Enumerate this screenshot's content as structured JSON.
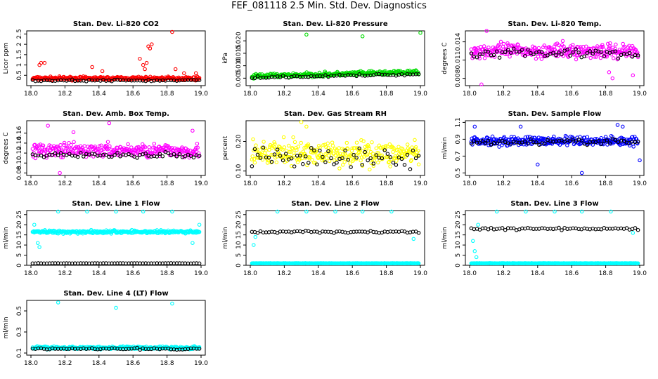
{
  "title": "FEF_081118  2.5 Min. Std. Dev. Diagnostics",
  "chart_data": [
    {
      "type": "scatter",
      "title": "Stan. Dev. Li-820 CO2",
      "ylabel": "Licor ppm",
      "color": "#ff0000",
      "xticks": [
        "18.0",
        "18.2",
        "18.4",
        "18.6",
        "18.8",
        "19.0"
      ],
      "xlim": [
        18.0,
        19.0
      ],
      "yticks": [
        0.5,
        1.0,
        1.5,
        2.0,
        2.5
      ],
      "ytick_labels": [
        "0.5",
        "1",
        "1.5",
        "2",
        "2.5"
      ],
      "ylim": [
        0.0,
        2.65
      ],
      "series": [
        {
          "name": "red",
          "base": 0.35,
          "spread": 0.12,
          "outliers": [
            [
              18.05,
              1.0
            ],
            [
              18.06,
              1.1
            ],
            [
              18.08,
              1.1
            ],
            [
              18.36,
              0.9
            ],
            [
              18.42,
              0.7
            ],
            [
              18.64,
              1.3
            ],
            [
              18.66,
              1.0
            ],
            [
              18.67,
              0.8
            ],
            [
              18.68,
              1.1
            ],
            [
              18.69,
              1.9
            ],
            [
              18.7,
              1.8
            ],
            [
              18.71,
              2.0
            ],
            [
              18.83,
              2.6
            ],
            [
              18.85,
              0.8
            ],
            [
              18.9,
              0.6
            ],
            [
              18.97,
              0.6
            ]
          ]
        },
        {
          "name": "black",
          "base": 0.25,
          "spread": 0.06,
          "outliers": []
        }
      ]
    },
    {
      "type": "scatter",
      "title": "Stan. Dev. Li-820 Pressure",
      "ylabel": "kPa",
      "color": "#00dd00",
      "xticks": [
        "18.0",
        "18.2",
        "18.4",
        "18.6",
        "18.8",
        "19.0"
      ],
      "xlim": [
        18.0,
        19.0
      ],
      "yticks": [
        0.005,
        0.01,
        0.015,
        0.02
      ],
      "ytick_labels": [
        "0.005",
        "0.010",
        "0.015",
        "0.020"
      ],
      "ylim": [
        0.002,
        0.024
      ],
      "series": [
        {
          "name": "green",
          "base": 0.0058,
          "slope": 0.0016,
          "spread": 0.0013,
          "outliers": [
            [
              18.33,
              0.0225
            ],
            [
              18.66,
              0.0218
            ],
            [
              19.0,
              0.0232
            ]
          ]
        },
        {
          "name": "black",
          "base": 0.0053,
          "slope": 0.0013,
          "spread": 0.0006,
          "outliers": []
        }
      ]
    },
    {
      "type": "scatter",
      "title": "Stan. Dev. Li-820 Temp.",
      "ylabel": "degrees C",
      "color": "#ff00ff",
      "xticks": [
        "18.0",
        "18.2",
        "18.4",
        "18.6",
        "18.8",
        "19.0"
      ],
      "xlim": [
        18.0,
        19.0
      ],
      "yticks": [
        0.008,
        0.011,
        0.014
      ],
      "ytick_labels": [
        "0.008",
        "0.011",
        "0.014"
      ],
      "ylim": [
        0.0068,
        0.0158
      ],
      "series": [
        {
          "name": "magenta",
          "base": 0.0125,
          "spread": 0.0018,
          "outliers": [
            [
              18.1,
              0.0158
            ],
            [
              18.07,
              0.007
            ],
            [
              18.84,
              0.008
            ],
            [
              18.82,
              0.009
            ],
            [
              18.96,
              0.0085
            ]
          ]
        },
        {
          "name": "black",
          "base": 0.0122,
          "spread": 0.0012,
          "outliers": []
        }
      ]
    },
    {
      "type": "scatter",
      "title": "Stan. Dev. Amb. Box Temp.",
      "ylabel": "degrees C",
      "color": "#ff00ff",
      "xticks": [
        "18.0",
        "18.2",
        "18.4",
        "18.6",
        "18.8",
        "19.0"
      ],
      "xlim": [
        18.0,
        19.0
      ],
      "yticks": [
        0.08,
        0.1,
        0.12,
        0.14,
        0.16
      ],
      "ytick_labels": [
        "0.08",
        "0.10",
        "0.12",
        "0.14",
        "0.16"
      ],
      "ylim": [
        0.075,
        0.185
      ],
      "series": [
        {
          "name": "magenta",
          "base": 0.125,
          "spread": 0.02,
          "outliers": [
            [
              18.1,
              0.175
            ],
            [
              18.46,
              0.18
            ],
            [
              18.25,
              0.162
            ],
            [
              18.95,
              0.165
            ],
            [
              18.17,
              0.08
            ]
          ]
        },
        {
          "name": "black",
          "base": 0.115,
          "spread": 0.01,
          "outliers": []
        }
      ]
    },
    {
      "type": "scatter",
      "title": "Stan. Dev. Gas Stream RH",
      "ylabel": "percent",
      "color": "#ffff00",
      "xticks": [
        "18.0",
        "18.2",
        "18.4",
        "18.6",
        "18.8",
        "19.0"
      ],
      "xlim": [
        18.0,
        19.0
      ],
      "yticks": [
        0.1,
        0.2
      ],
      "ytick_labels": [
        "0.10",
        "0.20"
      ],
      "ylim": [
        0.085,
        0.27
      ],
      "series": [
        {
          "name": "yellow",
          "base": 0.16,
          "spread": 0.06,
          "outliers": [
            [
              18.3,
              0.265
            ],
            [
              18.33,
              0.25
            ]
          ]
        },
        {
          "name": "black",
          "base": 0.14,
          "spread": 0.05,
          "outliers": []
        }
      ]
    },
    {
      "type": "scatter",
      "title": "Stan. Dev. Sample Flow",
      "ylabel": "ml/min",
      "color": "#0000ff",
      "xticks": [
        "18.0",
        "18.2",
        "18.4",
        "18.6",
        "18.8",
        "19.0"
      ],
      "xlim": [
        18.0,
        19.0
      ],
      "yticks": [
        0.5,
        0.7,
        0.9,
        1.1
      ],
      "ytick_labels": [
        "0.5",
        "0.7",
        "0.9",
        "1.1"
      ],
      "ylim": [
        0.47,
        1.12
      ],
      "series": [
        {
          "name": "blue",
          "base": 0.88,
          "spread": 0.08,
          "outliers": [
            [
              18.4,
              0.6
            ],
            [
              18.66,
              0.5
            ],
            [
              18.87,
              1.07
            ],
            [
              18.9,
              1.05
            ],
            [
              18.3,
              1.05
            ],
            [
              19.0,
              0.65
            ],
            [
              18.03,
              1.05
            ]
          ]
        },
        {
          "name": "black",
          "base": 0.87,
          "spread": 0.05,
          "outliers": []
        }
      ]
    },
    {
      "type": "scatter",
      "title": "Stan. Dev. Line 1 Flow",
      "ylabel": "ml/min",
      "color": "#00ffff",
      "xticks": [
        "18.0",
        "18.2",
        "18.4",
        "18.6",
        "18.8",
        "19.0"
      ],
      "xlim": [
        18.0,
        19.0
      ],
      "yticks": [
        0,
        5,
        10,
        15,
        20,
        25
      ],
      "ytick_labels": [
        "0",
        "5",
        "10",
        "15",
        "20",
        "25"
      ],
      "ylim": [
        0,
        27
      ],
      "series": [
        {
          "name": "cyan",
          "base": 16.5,
          "spread": 1.2,
          "outliers": [
            [
              18.16,
              26.5
            ],
            [
              18.33,
              26.5
            ],
            [
              18.5,
              26.5
            ],
            [
              18.66,
              26.5
            ],
            [
              18.83,
              26.5
            ],
            [
              18.02,
              20
            ],
            [
              18.04,
              11
            ],
            [
              18.05,
              9
            ],
            [
              18.95,
              11
            ],
            [
              18.99,
              20
            ]
          ]
        },
        {
          "name": "black",
          "base": 1.0,
          "spread": 0.1,
          "outliers": []
        }
      ]
    },
    {
      "type": "scatter",
      "title": "Stan. Dev. Line 2 Flow",
      "ylabel": "ml/min",
      "color": "#00ffff",
      "xticks": [
        "18.0",
        "18.2",
        "18.4",
        "18.6",
        "18.8",
        "19.0"
      ],
      "xlim": [
        18.0,
        19.0
      ],
      "yticks": [
        0,
        5,
        10,
        15,
        20,
        25
      ],
      "ytick_labels": [
        "0",
        "5",
        "10",
        "15",
        "20",
        "25"
      ],
      "ylim": [
        0,
        27
      ],
      "series": [
        {
          "name": "cyan",
          "base": 1.0,
          "spread": 0.1,
          "outliers": [
            [
              18.16,
              26.5
            ],
            [
              18.33,
              26.5
            ],
            [
              18.5,
              26.5
            ],
            [
              18.66,
              26.5
            ],
            [
              18.83,
              26.5
            ],
            [
              18.02,
              10
            ],
            [
              18.03,
              14
            ],
            [
              18.96,
              13
            ]
          ]
        },
        {
          "name": "black",
          "base": 16.5,
          "spread": 0.8,
          "outliers": []
        }
      ]
    },
    {
      "type": "scatter",
      "title": "Stan. Dev. Line 3 Flow",
      "ylabel": "ml/min",
      "color": "#00ffff",
      "xticks": [
        "18.0",
        "18.2",
        "18.4",
        "18.6",
        "18.8",
        "19.0"
      ],
      "xlim": [
        18.0,
        19.0
      ],
      "yticks": [
        0,
        5,
        10,
        15,
        20,
        25
      ],
      "ytick_labels": [
        "0",
        "5",
        "10",
        "15",
        "20",
        "25"
      ],
      "ylim": [
        0,
        27
      ],
      "series": [
        {
          "name": "cyan",
          "base": 1.0,
          "spread": 0.1,
          "outliers": [
            [
              18.16,
              26.5
            ],
            [
              18.33,
              26.5
            ],
            [
              18.5,
              26.5
            ],
            [
              18.66,
              26.5
            ],
            [
              18.83,
              26.5
            ],
            [
              18.02,
              12
            ],
            [
              18.03,
              7
            ],
            [
              18.04,
              4
            ],
            [
              18.05,
              20
            ],
            [
              18.96,
              16
            ]
          ]
        },
        {
          "name": "black",
          "base": 18.0,
          "spread": 0.8,
          "outliers": []
        }
      ]
    },
    {
      "type": "scatter",
      "title": "Stan. Dev. Line 4 (LT) Flow",
      "ylabel": "ml/min",
      "color": "#00ffff",
      "xticks": [
        "18.0",
        "18.2",
        "18.4",
        "18.6",
        "18.8",
        "19.0"
      ],
      "xlim": [
        18.0,
        19.0
      ],
      "yticks": [
        0.1,
        0.3,
        0.5
      ],
      "ytick_labels": [
        "0.1",
        "0.3",
        "0.5"
      ],
      "ylim": [
        0.08,
        0.6
      ],
      "series": [
        {
          "name": "cyan",
          "base": 0.15,
          "spread": 0.02,
          "outliers": [
            [
              18.16,
              0.58
            ],
            [
              18.5,
              0.53
            ],
            [
              18.83,
              0.57
            ]
          ]
        },
        {
          "name": "black",
          "base": 0.14,
          "spread": 0.012,
          "outliers": []
        }
      ]
    }
  ]
}
